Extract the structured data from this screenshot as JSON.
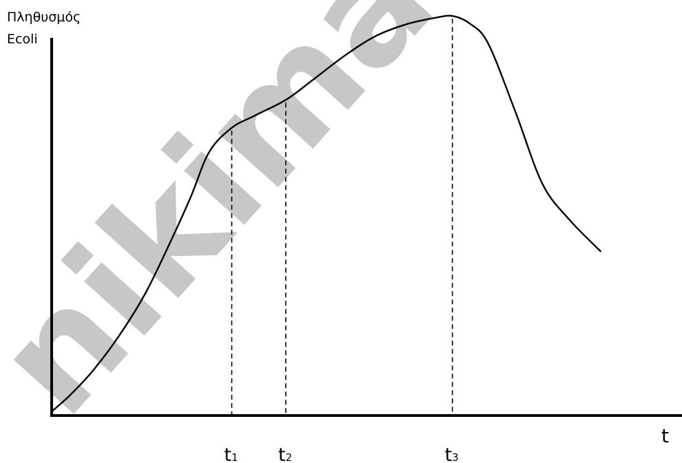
{
  "chart_data": {
    "type": "line",
    "ylabel_lines": [
      "Πληθυσμός",
      "Ecoli"
    ],
    "xlabel": "t",
    "ticks": [
      {
        "base": "t",
        "sub": "1",
        "x": 0.4
      },
      {
        "base": "t",
        "sub": "2",
        "x": 0.52
      },
      {
        "base": "t",
        "sub": "3",
        "x": 0.89
      }
    ],
    "curve": {
      "x": [
        0,
        0.04,
        0.09,
        0.15,
        0.21,
        0.27,
        0.31,
        0.35,
        0.4,
        0.45,
        0.52,
        0.58,
        0.65,
        0.72,
        0.79,
        0.85,
        0.89,
        0.93,
        0.97,
        1.03,
        1.09,
        1.15,
        1.22
      ],
      "y": [
        0.01,
        0.05,
        0.11,
        0.2,
        0.31,
        0.45,
        0.55,
        0.66,
        0.72,
        0.75,
        0.79,
        0.84,
        0.9,
        0.95,
        0.98,
        0.995,
        1.0,
        0.98,
        0.93,
        0.76,
        0.58,
        0.49,
        0.41
      ]
    },
    "dropline_x": [
      0.4,
      0.52,
      0.89
    ],
    "xlim": [
      0,
      1.4
    ],
    "ylim": [
      0,
      1.04
    ],
    "grid": false,
    "legend": "none"
  },
  "watermark": "nikimargan",
  "colors": {
    "line": "#000000",
    "axis": "#000000",
    "watermark": "#b8b8b8"
  }
}
